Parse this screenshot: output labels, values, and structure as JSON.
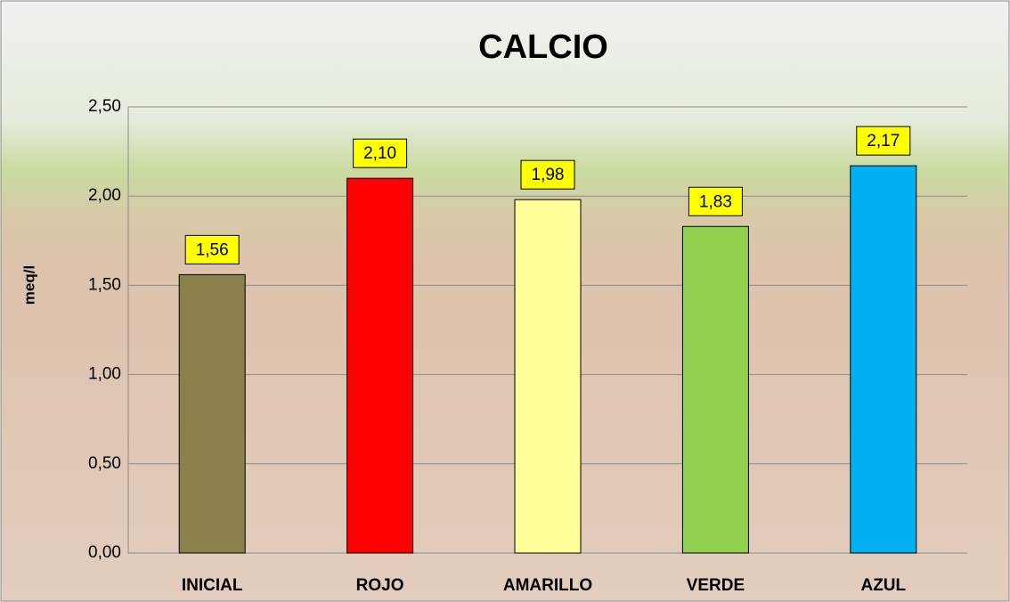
{
  "chart_data": {
    "type": "bar",
    "title": "CALCIO",
    "y_label": "meq/l",
    "categories": [
      "INICIAL",
      "ROJO",
      "AMARILLO",
      "VERDE",
      "AZUL"
    ],
    "values": [
      1.56,
      2.1,
      1.98,
      1.83,
      2.17
    ],
    "value_labels": [
      "1,56",
      "2,10",
      "1,98",
      "1,83",
      "2,17"
    ],
    "colors": [
      "#8b7f4b",
      "#ff0000",
      "#ffff99",
      "#92d050",
      "#00b0f0"
    ],
    "ylim": [
      0,
      2.5
    ],
    "yticks": [
      {
        "value": 0,
        "label": "0,00"
      },
      {
        "value": 0.5,
        "label": "0,50"
      },
      {
        "value": 1,
        "label": "1,00"
      },
      {
        "value": 1.5,
        "label": "1,50"
      },
      {
        "value": 2,
        "label": "2,00"
      },
      {
        "value": 2.5,
        "label": "2,50"
      }
    ],
    "grid": true
  }
}
